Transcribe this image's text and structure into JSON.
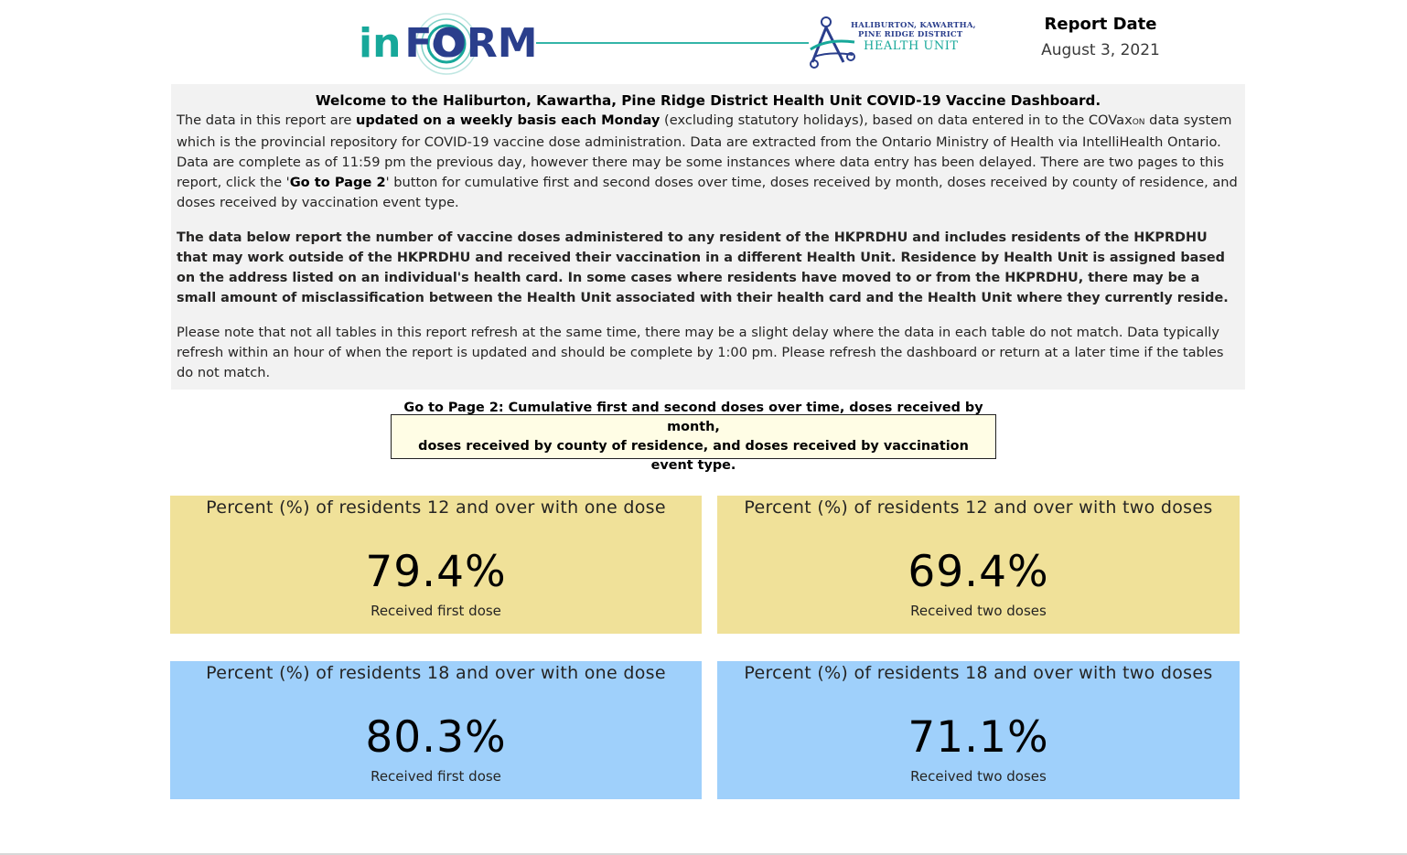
{
  "header": {
    "logo_in": "in",
    "logo_form": "FORM",
    "health_unit_line1": "HALIBURTON, KAWARTHA,",
    "health_unit_line2": "PINE RIDGE DISTRICT",
    "health_unit_line3": "HEALTH UNIT",
    "report_date_label": "Report Date",
    "report_date_value": "August 3, 2021"
  },
  "welcome": {
    "title": "Welcome to the Haliburton, Kawartha, Pine Ridge District Health Unit COVID-19 Vaccine Dashboard.",
    "p1_a": "The data in this report are ",
    "p1_b": "updated on a weekly basis each Monday",
    "p1_c": " (excluding statutory holidays), based on data entered in to the COVax",
    "p1_sub": "ON",
    "p1_d": " data system which is the provincial repository for COVID-19 vaccine dose administration. Data are extracted from the Ontario Ministry of Health via IntelliHealth Ontario. Data are complete as of 11:59 pm the previous day, however there may be some instances where data entry has been delayed. There are two pages to this report, click the '",
    "p1_e": "Go to Page 2",
    "p1_f": "' button for cumulative first and second doses over time, doses received by month, doses received by county of residence, and doses received by vaccination event type.",
    "p2": "The data below report the number of vaccine doses administered to any resident of the HKPRDHU and includes residents of the HKPRDHU that may work outside of the HKPRDHU and received their vaccination in a different Health Unit. Residence by Health Unit is assigned based on the address listed on an individual's health card. In some cases where residents have moved to or from the HKPRDHU, there may be a small amount of misclassification between the Health Unit associated with their health card and the Health Unit where they currently reside.",
    "p3": "Please note that not all tables in this report refresh at the same time, there may be a slight delay where the data in each table do not match. Data typically refresh within an hour of when the report is updated and should be complete by 1:00 pm. Please refresh the dashboard or return at a later time if the tables do not match."
  },
  "page2_button": {
    "line1": "Go to Page 2: Cumulative first and second doses over time, doses received by month,",
    "line2": "doses received by county of residence, and doses received by vaccination event type."
  },
  "cards": [
    {
      "title": "Percent (%) of residents 12 and over with one dose",
      "value": "79.4%",
      "label": "Received first dose"
    },
    {
      "title": "Percent (%) of residents 12 and over with two doses",
      "value": "69.4%",
      "label": "Received two doses"
    },
    {
      "title": "Percent (%) of residents 18 and over with one dose",
      "value": "80.3%",
      "label": "Received first dose"
    },
    {
      "title": "Percent (%) of residents 18 and over with two doses",
      "value": "71.1%",
      "label": "Received two doses"
    }
  ],
  "colors": {
    "card_yellow": "#f0e199",
    "card_blue": "#9fd0fb",
    "brand_teal": "#17a89a",
    "brand_navy": "#2a3e8c"
  }
}
